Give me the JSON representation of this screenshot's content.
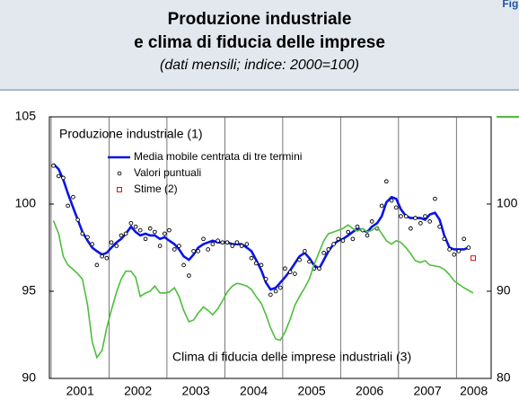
{
  "figure_label": "Figura",
  "chart_data": {
    "type": "line",
    "title": [
      "Produzione industriale",
      "e clima di fiducia delle imprese"
    ],
    "subtitle": "(dati mensili; indice: 2000=100)",
    "annotations": [
      "Produzione industriale (1)",
      "Clima di fiducia delle imprese industriali (3)"
    ],
    "xlim": [
      2000.97,
      2008.6
    ],
    "xticks": [
      2001,
      2002,
      2003,
      2004,
      2005,
      2006,
      2007,
      2008
    ],
    "ylim": [
      90,
      105
    ],
    "yticks": [
      90,
      95,
      100,
      105
    ],
    "y2lim": [
      80,
      110
    ],
    "y2ticks": [
      80,
      90,
      100
    ],
    "x": [
      2001.04,
      2001.13,
      2001.21,
      2001.29,
      2001.38,
      2001.46,
      2001.54,
      2001.63,
      2001.71,
      2001.79,
      2001.88,
      2001.96,
      2002.04,
      2002.13,
      2002.21,
      2002.29,
      2002.38,
      2002.46,
      2002.54,
      2002.63,
      2002.71,
      2002.79,
      2002.88,
      2002.96,
      2003.04,
      2003.13,
      2003.21,
      2003.29,
      2003.38,
      2003.46,
      2003.54,
      2003.63,
      2003.71,
      2003.79,
      2003.88,
      2003.96,
      2004.04,
      2004.13,
      2004.21,
      2004.29,
      2004.38,
      2004.46,
      2004.54,
      2004.63,
      2004.71,
      2004.79,
      2004.88,
      2004.96,
      2005.04,
      2005.13,
      2005.21,
      2005.29,
      2005.38,
      2005.46,
      2005.54,
      2005.63,
      2005.71,
      2005.79,
      2005.88,
      2005.96,
      2006.04,
      2006.13,
      2006.21,
      2006.29,
      2006.38,
      2006.46,
      2006.54,
      2006.63,
      2006.71,
      2006.79,
      2006.88,
      2006.96,
      2007.04,
      2007.13,
      2007.21,
      2007.29,
      2007.38,
      2007.46,
      2007.54,
      2007.63,
      2007.71,
      2007.79,
      2007.88,
      2007.96,
      2008.04,
      2008.13,
      2008.21
    ],
    "series": [
      {
        "name": "Media mobile centrata di tre termini",
        "color": "#0a14e6",
        "style": "line",
        "values": [
          102.3,
          102.0,
          101.4,
          100.6,
          99.8,
          99.1,
          98.4,
          97.9,
          97.5,
          97.3,
          97.1,
          97.2,
          97.5,
          97.8,
          98.0,
          98.3,
          98.7,
          98.4,
          98.2,
          98.3,
          98.2,
          98.2,
          98.0,
          98.1,
          97.9,
          97.7,
          97.4,
          97.0,
          96.8,
          97.1,
          97.5,
          97.7,
          97.8,
          97.9,
          97.8,
          97.8,
          97.8,
          97.7,
          97.7,
          97.7,
          97.5,
          97.3,
          96.8,
          96.2,
          95.5,
          95.1,
          95.2,
          95.5,
          95.8,
          96.2,
          96.6,
          97.0,
          97.2,
          96.9,
          96.5,
          96.3,
          96.8,
          97.3,
          97.7,
          97.9,
          98.0,
          98.2,
          98.4,
          98.6,
          98.5,
          98.4,
          98.7,
          98.9,
          99.3,
          100.1,
          100.4,
          100.3,
          99.7,
          99.3,
          99.2,
          99.2,
          99.2,
          99.1,
          99.4,
          99.5,
          99.1,
          98.2,
          97.5,
          97.4,
          97.4,
          97.4,
          97.5
        ]
      },
      {
        "name": "Valori puntuali",
        "color": "#000000",
        "style": "dots",
        "values": [
          102.2,
          101.6,
          101.5,
          99.9,
          100.4,
          99.1,
          98.3,
          98.1,
          97.7,
          96.5,
          97.0,
          96.9,
          97.8,
          97.6,
          98.2,
          98.3,
          98.9,
          98.7,
          98.5,
          98.0,
          98.6,
          98.4,
          97.6,
          98.3,
          98.5,
          97.4,
          97.6,
          96.5,
          95.9,
          97.3,
          97.3,
          98.0,
          97.4,
          97.7,
          97.9,
          97.8,
          97.8,
          97.6,
          97.8,
          97.6,
          97.7,
          96.9,
          96.6,
          96.5,
          95.7,
          94.8,
          95.0,
          95.2,
          96.3,
          96.1,
          96.0,
          96.8,
          97.3,
          96.7,
          96.3,
          96.3,
          97.2,
          97.4,
          97.7,
          98.0,
          97.9,
          98.4,
          98.0,
          98.7,
          98.5,
          98.2,
          99.0,
          98.6,
          99.9,
          101.3,
          100.2,
          99.8,
          99.3,
          99.3,
          98.6,
          99.2,
          98.9,
          99.3,
          99.0,
          100.3,
          98.7,
          98.0,
          97.4,
          97.1,
          97.3,
          98.0,
          97.5
        ]
      },
      {
        "name": "Stime (2)",
        "color": "#e01010",
        "style": "square",
        "x": [
          2008.29
        ],
        "values": [
          96.9
        ]
      },
      {
        "color": "#4cbf3a",
        "style": "line",
        "axis": "y2",
        "x": [
          2001.04,
          2001.13,
          2001.21,
          2001.29,
          2001.38,
          2001.46,
          2001.54,
          2001.63,
          2001.71,
          2001.79,
          2001.88,
          2001.96,
          2002.04,
          2002.13,
          2002.21,
          2002.29,
          2002.38,
          2002.46,
          2002.54,
          2002.63,
          2002.71,
          2002.79,
          2002.88,
          2002.96,
          2003.04,
          2003.13,
          2003.21,
          2003.29,
          2003.38,
          2003.46,
          2003.54,
          2003.63,
          2003.71,
          2003.79,
          2003.88,
          2003.96,
          2004.04,
          2004.13,
          2004.21,
          2004.29,
          2004.38,
          2004.46,
          2004.54,
          2004.63,
          2004.71,
          2004.79,
          2004.88,
          2004.96,
          2005.04,
          2005.13,
          2005.21,
          2005.29,
          2005.38,
          2005.46,
          2005.54,
          2005.63,
          2005.71,
          2005.79,
          2005.88,
          2005.96,
          2006.04,
          2006.13,
          2006.21,
          2006.29,
          2006.38,
          2006.46,
          2006.54,
          2006.63,
          2006.71,
          2006.79,
          2006.88,
          2006.96,
          2007.04,
          2007.13,
          2007.21,
          2007.29,
          2007.38,
          2007.46,
          2007.54,
          2007.63,
          2007.71,
          2007.79,
          2007.88,
          2007.96,
          2008.04,
          2008.13,
          2008.21,
          2008.29
        ],
        "values": [
          98.1,
          96.6,
          94.0,
          93.0,
          92.5,
          92.0,
          91.4,
          88.4,
          84.2,
          82.4,
          83.2,
          85.8,
          87.8,
          89.9,
          91.4,
          92.3,
          92.3,
          91.6,
          89.4,
          89.8,
          90.0,
          90.6,
          89.8,
          89.8,
          89.9,
          90.4,
          89.4,
          87.8,
          86.5,
          86.7,
          87.5,
          88.2,
          87.8,
          87.3,
          88.0,
          88.9,
          89.9,
          90.6,
          90.9,
          90.8,
          90.6,
          90.2,
          89.4,
          88.6,
          87.3,
          85.8,
          84.5,
          84.4,
          85.3,
          86.8,
          88.4,
          89.4,
          90.4,
          91.4,
          93.0,
          94.5,
          95.8,
          96.6,
          96.8,
          97.0,
          97.2,
          97.6,
          97.2,
          96.9,
          97.2,
          96.8,
          97.0,
          97.4,
          96.6,
          95.8,
          95.4,
          95.8,
          95.6,
          95.0,
          94.3,
          93.5,
          93.3,
          93.5,
          93.0,
          92.9,
          92.8,
          92.5,
          91.9,
          91.2,
          90.8,
          90.4,
          90.1,
          89.8
        ]
      }
    ]
  }
}
